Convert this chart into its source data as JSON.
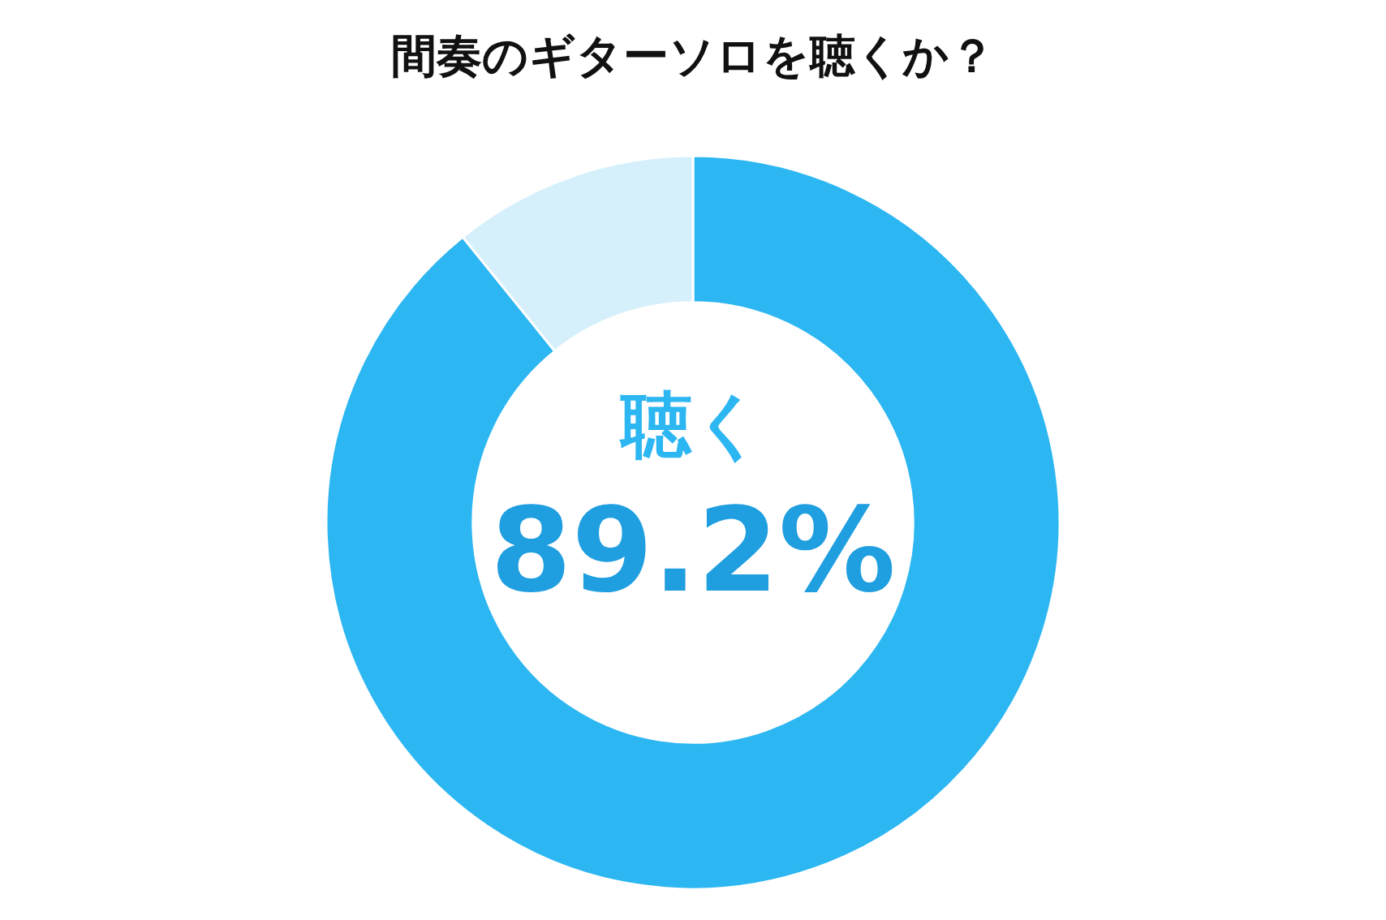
{
  "chart_data": {
    "type": "donut",
    "title": "間奏のギターソロを聴くか？",
    "categories": [
      "聴く",
      null
    ],
    "values": [
      89.2,
      10.8
    ],
    "colors": [
      "#2cb6f2",
      "#d6f0fb"
    ],
    "value_labels": [
      "89.2%",
      null
    ],
    "legend": false
  }
}
